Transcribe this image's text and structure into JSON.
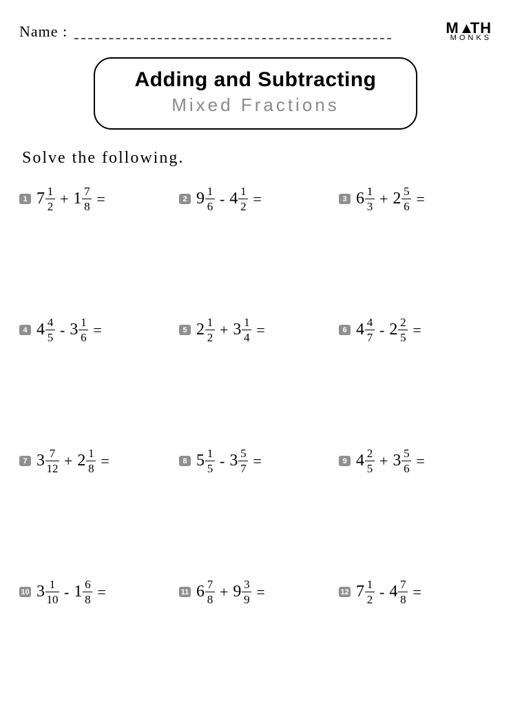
{
  "header": {
    "name_label": "Name :",
    "logo_top": "M",
    "logo_tri": "▲",
    "logo_rest": "TH",
    "logo_bot": "MONKS"
  },
  "title": {
    "main": "Adding and Subtracting",
    "sub": "Mixed Fractions"
  },
  "instruction": "Solve the following.",
  "badge_bg": "#8f8f8f",
  "badge_fg": "#ffffff",
  "problems": [
    {
      "n": "1",
      "a_w": "7",
      "a_n": "1",
      "a_d": "2",
      "op": "+",
      "b_w": "1",
      "b_n": "7",
      "b_d": "8"
    },
    {
      "n": "2",
      "a_w": "9",
      "a_n": "1",
      "a_d": "6",
      "op": "-",
      "b_w": "4",
      "b_n": "1",
      "b_d": "2"
    },
    {
      "n": "3",
      "a_w": "6",
      "a_n": "1",
      "a_d": "3",
      "op": "+",
      "b_w": "2",
      "b_n": "5",
      "b_d": "6"
    },
    {
      "n": "4",
      "a_w": "4",
      "a_n": "4",
      "a_d": "5",
      "op": "-",
      "b_w": "3",
      "b_n": "1",
      "b_d": "6"
    },
    {
      "n": "5",
      "a_w": "2",
      "a_n": "1",
      "a_d": "2",
      "op": "+",
      "b_w": "3",
      "b_n": "1",
      "b_d": "4"
    },
    {
      "n": "6",
      "a_w": "4",
      "a_n": "4",
      "a_d": "7",
      "op": "-",
      "b_w": "2",
      "b_n": "2",
      "b_d": "5"
    },
    {
      "n": "7",
      "a_w": "3",
      "a_n": "7",
      "a_d": "12",
      "op": "+",
      "b_w": "2",
      "b_n": "1",
      "b_d": "8"
    },
    {
      "n": "8",
      "a_w": "5",
      "a_n": "1",
      "a_d": "5",
      "op": "-",
      "b_w": "3",
      "b_n": "5",
      "b_d": "7"
    },
    {
      "n": "9",
      "a_w": "4",
      "a_n": "2",
      "a_d": "5",
      "op": "+",
      "b_w": "3",
      "b_n": "5",
      "b_d": "6"
    },
    {
      "n": "10",
      "a_w": "3",
      "a_n": "1",
      "a_d": "10",
      "op": "-",
      "b_w": "1",
      "b_n": "6",
      "b_d": "8"
    },
    {
      "n": "11",
      "a_w": "6",
      "a_n": "7",
      "a_d": "8",
      "op": "+",
      "b_w": "9",
      "b_n": "3",
      "b_d": "9"
    },
    {
      "n": "12",
      "a_w": "7",
      "a_n": "1",
      "a_d": "2",
      "op": "-",
      "b_w": "4",
      "b_n": "7",
      "b_d": "8"
    }
  ]
}
